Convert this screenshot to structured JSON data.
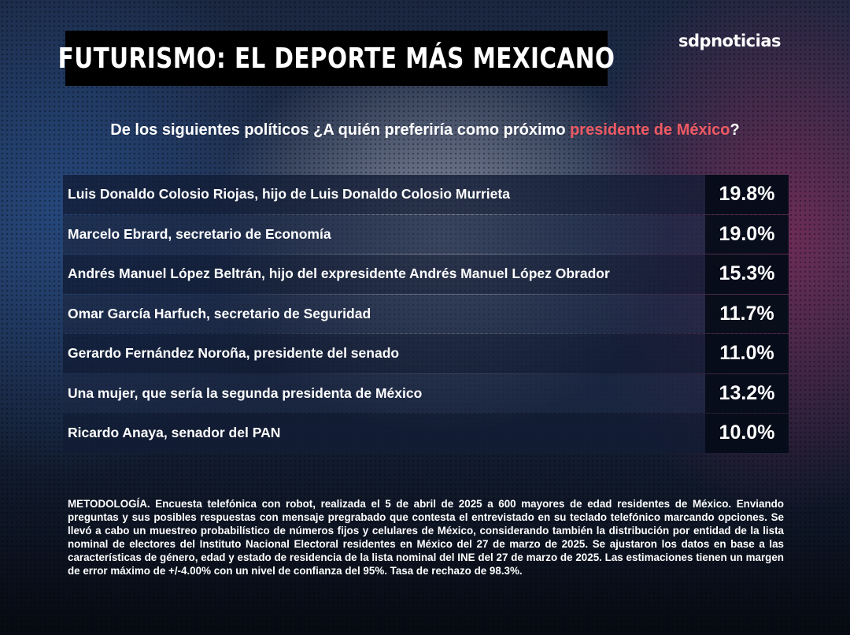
{
  "header": {
    "title": "FUTURISMO: EL DEPORTE MÁS MEXICANO",
    "brand": "sdpnoticias"
  },
  "question": {
    "text_before": "De los siguientes políticos ¿A quién preferiría como próximo ",
    "highlight": "presidente de México",
    "text_after": "?",
    "highlight_color": "#ee5a62"
  },
  "results": [
    {
      "label": "Luis Donaldo Colosio Riojas, hijo de Luis Donaldo Colosio Murrieta",
      "value": "19.8%"
    },
    {
      "label": "Marcelo Ebrard, secretario de Economía",
      "value": "19.0%"
    },
    {
      "label": "Andrés Manuel López Beltrán, hijo del expresidente Andrés Manuel López Obrador",
      "value": "15.3%"
    },
    {
      "label": "Omar García Harfuch, secretario de Seguridad",
      "value": "11.7%"
    },
    {
      "label": "Gerardo Fernández Noroña, presidente del senado",
      "value": "11.0%"
    },
    {
      "label": "Una mujer, que sería la segunda presidenta de México",
      "value": "13.2%"
    },
    {
      "label": "Ricardo Anaya, senador del PAN",
      "value": "10.0%"
    }
  ],
  "methodology": "METODOLOGÍA. Encuesta telefónica con robot, realizada el 5 de abril de 2025 a 600 mayores de edad residentes de México. Enviando  preguntas y sus posibles respuestas con mensaje pregrabado que contesta el entrevistado en su teclado telefónico marcando opciones. Se llevó a cabo un muestreo probabilístico de números fijos y celulares de México, considerando también la distribución por entidad de la lista nominal de electores del Instituto Nacional Electoral residentes en México del 27 de marzo de 2025. Se ajustaron los datos en base a las características de género, edad y estado de residencia de la lista nominal del INE del 27 de marzo de 2025. Las estimaciones tienen un margen de error máximo de +/-4.00% con un nivel de confianza del 95%. Tasa de rechazo de 98.3%."
}
